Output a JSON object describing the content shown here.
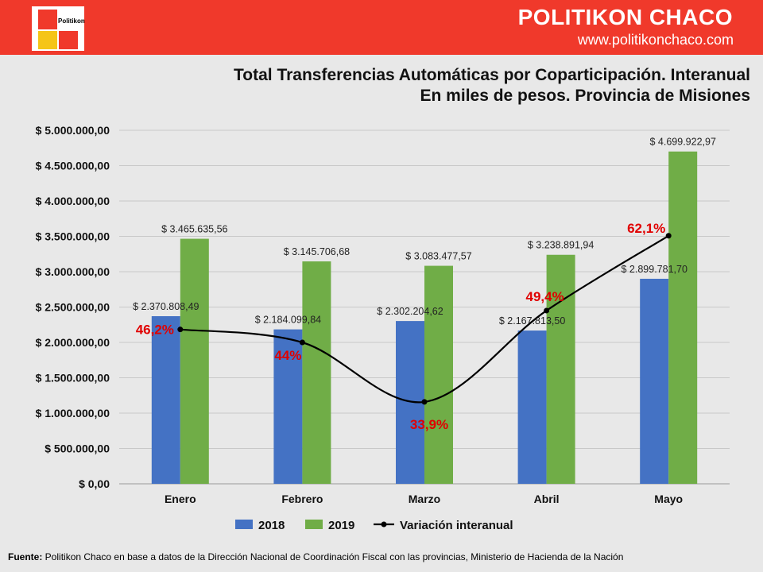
{
  "header": {
    "logo_text": "Politikon",
    "brand_title": "POLITIKON CHACO",
    "brand_url": "www.politikonchaco.com"
  },
  "colors": {
    "header_red": "#f0392b",
    "series_2018": "#4472c4",
    "series_2019": "#70ad47",
    "line": "#000000",
    "pct_label": "#e00000"
  },
  "chart_data": {
    "type": "bar",
    "title": [
      "Total Transferencias Automáticas por Coparticipación. Interanual",
      "En miles de pesos. Provincia de Misiones"
    ],
    "categories": [
      "Enero",
      "Febrero",
      "Marzo",
      "Abril",
      "Mayo"
    ],
    "series": [
      {
        "name": "2018",
        "values": [
          2370808.49,
          2184099.84,
          2302204.62,
          2167813.5,
          2899781.7
        ],
        "labels": [
          "$ 2.370.808,49",
          "$ 2.184.099,84",
          "$ 2.302.204,62",
          "$ 2.167.813,50",
          "$ 2.899.781,70"
        ]
      },
      {
        "name": "2019",
        "values": [
          3465635.56,
          3145706.68,
          3083477.57,
          3238891.94,
          4699922.97
        ],
        "labels": [
          "$ 3.465.635,56",
          "$ 3.145.706,68",
          "$ 3.083.477,57",
          "$ 3.238.891,94",
          "$ 4.699.922,97"
        ]
      }
    ],
    "line_series": {
      "name": "Variación interanual",
      "type": "line",
      "values": [
        46.2,
        44,
        33.9,
        49.4,
        62.1
      ],
      "labels": [
        "46,2%",
        "44%",
        "33,9%",
        "49,4%",
        "62,1%"
      ]
    },
    "ylim": [
      0,
      5000000
    ],
    "yticks": [
      "$ 0,00",
      "$ 500.000,00",
      "$ 1.000.000,00",
      "$ 1.500.000,00",
      "$ 2.000.000,00",
      "$ 2.500.000,00",
      "$ 3.000.000,00",
      "$ 3.500.000,00",
      "$ 4.000.000,00",
      "$ 4.500.000,00",
      "$ 5.000.000,00"
    ],
    "ytick_values": [
      0,
      500000,
      1000000,
      1500000,
      2000000,
      2500000,
      3000000,
      3500000,
      4000000,
      4500000,
      5000000
    ],
    "grid": true,
    "legend": "bottom"
  },
  "footer": {
    "label": "Fuente:",
    "text": " Politikon Chaco en base a datos de la Dirección Nacional de Coordinación Fiscal con las provincias, Ministerio de Hacienda de la Nación"
  }
}
